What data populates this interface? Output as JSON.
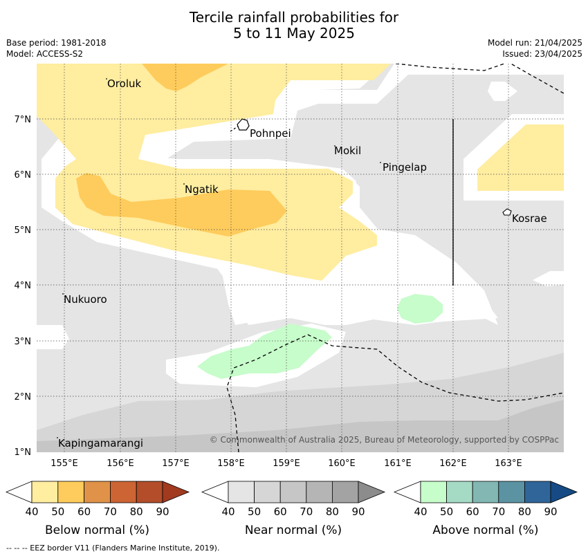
{
  "title": {
    "line1": "Tercile rainfall probabilities for",
    "line2": "5 to 11 May 2025"
  },
  "meta": {
    "base_period": "Base period: 1981-2018",
    "model": "Model: ACCESS-S2",
    "model_run": "Model run: 21/04/2025",
    "issued": "Issued: 23/04/2025"
  },
  "map": {
    "lon_ticks": [
      "155°E",
      "156°E",
      "157°E",
      "158°E",
      "159°E",
      "160°E",
      "161°E",
      "162°E",
      "163°E"
    ],
    "lat_ticks": [
      "7°N",
      "6°N",
      "5°N",
      "4°N",
      "3°N",
      "2°N",
      "1°N"
    ],
    "places": [
      {
        "name": "Oroluk"
      },
      {
        "name": "Pohnpei"
      },
      {
        "name": "Mokil"
      },
      {
        "name": "Pingelap"
      },
      {
        "name": "Ngatik"
      },
      {
        "name": "Kosrae"
      },
      {
        "name": "Nukuoro"
      },
      {
        "name": "Kapingamarangi"
      }
    ],
    "copyright": "© Commonwealth of Australia 2025, Bureau of Meteorology, supported by COSPPac"
  },
  "colorbars": [
    {
      "label": "Below normal (%)",
      "ticks": [
        "40",
        "50",
        "60",
        "70",
        "80",
        "90"
      ],
      "colors": [
        "#ffeda0",
        "#fecc5c",
        "#e09248",
        "#cc6433",
        "#b34d2a",
        "#a13a1f"
      ]
    },
    {
      "label": "Near normal (%)",
      "ticks": [
        "40",
        "50",
        "60",
        "70",
        "80",
        "90"
      ],
      "colors": [
        "#e5e5e5",
        "#d6d6d6",
        "#c6c6c6",
        "#b5b5b5",
        "#a3a3a3",
        "#8c8c8c"
      ]
    },
    {
      "label": "Above normal (%)",
      "ticks": [
        "40",
        "50",
        "60",
        "70",
        "80",
        "90"
      ],
      "colors": [
        "#c7fccb",
        "#a5dbc4",
        "#82b7b3",
        "#5b93a3",
        "#30659a",
        "#154a84"
      ]
    }
  ],
  "footnote": "--  --  -- EEZ border V11 (Flanders Marine Institute, 2019)."
}
